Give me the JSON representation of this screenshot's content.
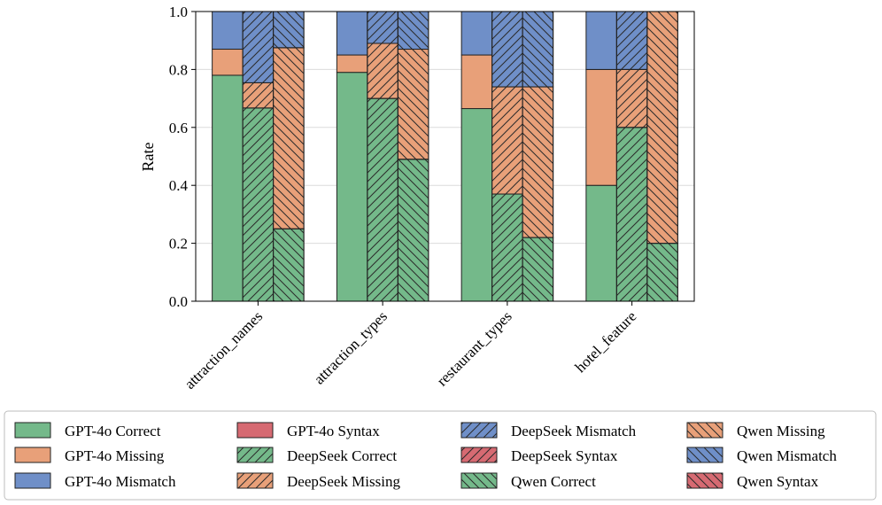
{
  "chart_data": {
    "type": "bar",
    "stacked": true,
    "grouped": true,
    "categories": [
      "attraction_names",
      "attraction_types",
      "restaurant_types",
      "hotel_feature"
    ],
    "ylabel": "Rate",
    "xlabel": "",
    "ylim": [
      0,
      1.0
    ],
    "yticks": [
      "0.0",
      "0.2",
      "0.4",
      "0.6",
      "0.8",
      "1.0"
    ],
    "grid": true,
    "legend_position": "bottom",
    "colors": {
      "Correct": "#74b98a",
      "Missing": "#e8a079",
      "Mismatch": "#6f8fc8",
      "Syntax": "#d66a72"
    },
    "models": [
      {
        "name": "GPT-4o",
        "hatch": "none",
        "segments": {
          "Correct": [
            0.78,
            0.79,
            0.665,
            0.4
          ],
          "Missing": [
            0.09,
            0.06,
            0.185,
            0.4
          ],
          "Mismatch": [
            0.13,
            0.15,
            0.15,
            0.2
          ],
          "Syntax": [
            0,
            0,
            0,
            0
          ]
        }
      },
      {
        "name": "DeepSeek",
        "hatch": "forward",
        "segments": {
          "Correct": [
            0.667,
            0.7,
            0.37,
            0.6
          ],
          "Missing": [
            0.087,
            0.19,
            0.37,
            0.2
          ],
          "Mismatch": [
            0.246,
            0.11,
            0.26,
            0.2
          ],
          "Syntax": [
            0,
            0,
            0,
            0
          ]
        }
      },
      {
        "name": "Qwen",
        "hatch": "backward",
        "segments": {
          "Correct": [
            0.25,
            0.49,
            0.22,
            0.2
          ],
          "Missing": [
            0.625,
            0.38,
            0.52,
            0.8
          ],
          "Mismatch": [
            0.125,
            0.13,
            0.26,
            0.0
          ],
          "Syntax": [
            0,
            0,
            0,
            0
          ]
        }
      }
    ],
    "legend": [
      {
        "label": "GPT-4o Correct",
        "model": "GPT-4o",
        "type": "Correct"
      },
      {
        "label": "GPT-4o Missing",
        "model": "GPT-4o",
        "type": "Missing"
      },
      {
        "label": "GPT-4o Mismatch",
        "model": "GPT-4o",
        "type": "Mismatch"
      },
      {
        "label": "GPT-4o Syntax",
        "model": "GPT-4o",
        "type": "Syntax"
      },
      {
        "label": "DeepSeek Correct",
        "model": "DeepSeek",
        "type": "Correct"
      },
      {
        "label": "DeepSeek Missing",
        "model": "DeepSeek",
        "type": "Missing"
      },
      {
        "label": "DeepSeek Mismatch",
        "model": "DeepSeek",
        "type": "Mismatch"
      },
      {
        "label": "DeepSeek Syntax",
        "model": "DeepSeek",
        "type": "Syntax"
      },
      {
        "label": "Qwen Correct",
        "model": "Qwen",
        "type": "Correct"
      },
      {
        "label": "Qwen Missing",
        "model": "Qwen",
        "type": "Missing"
      },
      {
        "label": "Qwen Mismatch",
        "model": "Qwen",
        "type": "Mismatch"
      },
      {
        "label": "Qwen Syntax",
        "model": "Qwen",
        "type": "Syntax"
      }
    ]
  }
}
